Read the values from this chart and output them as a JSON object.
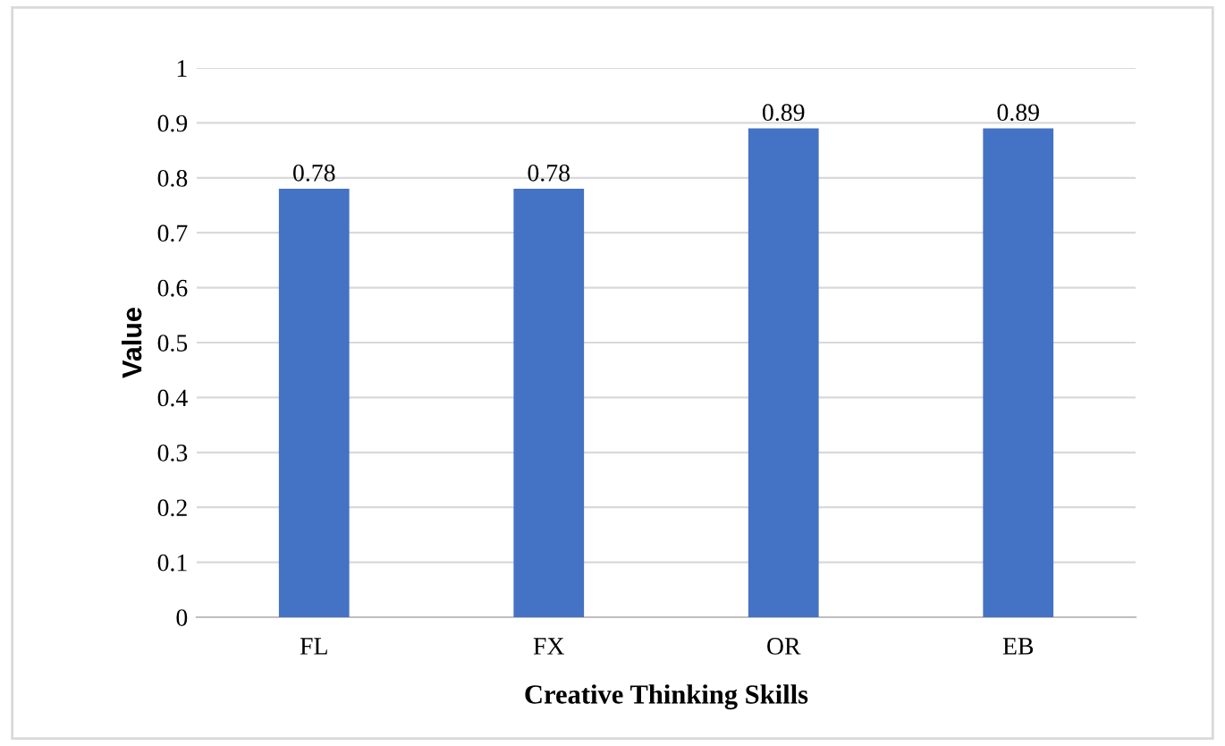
{
  "chart_data": {
    "type": "bar",
    "xlabel": "Creative Thinking Skills",
    "ylabel": "Value",
    "categories": [
      "FL",
      "FX",
      "OR",
      "EB"
    ],
    "values": [
      0.78,
      0.78,
      0.89,
      0.89
    ],
    "color": "#4472c4",
    "ylim": [
      0,
      1
    ],
    "yticks": [
      0,
      0.1,
      0.2,
      0.3,
      0.4,
      0.5,
      0.6,
      0.7,
      0.8,
      0.9,
      1
    ],
    "grid": "y",
    "data_labels": true
  }
}
